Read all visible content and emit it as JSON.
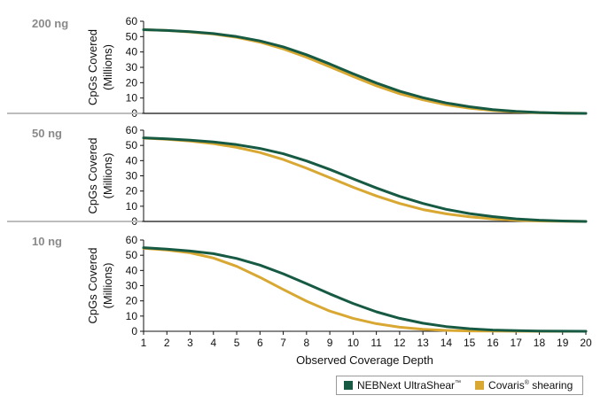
{
  "colors": {
    "neb": "#175a44",
    "covaris": "#d9a832"
  },
  "legend": {
    "neb_label": "NEBNext UltraShear",
    "neb_mark": "™",
    "covaris_label": "Covaris",
    "covaris_mark": "®",
    "covaris_suffix": " shearing"
  },
  "chart_data": [
    {
      "type": "line",
      "title": "200 ng",
      "xlabel": "Observed Coverage Depth",
      "ylabel": [
        "CpGs Covered",
        "(Millions)"
      ],
      "xlim": [
        1,
        20
      ],
      "ylim": [
        0,
        60
      ],
      "yticks": [
        0,
        10,
        20,
        30,
        40,
        50,
        60
      ],
      "x": [
        1,
        2,
        3,
        4,
        5,
        6,
        7,
        8,
        9,
        10,
        11,
        12,
        13,
        14,
        15,
        16,
        17,
        18,
        19,
        20
      ],
      "series": [
        {
          "name": "NEBNext UltraShear",
          "values": [
            54.5,
            54,
            53.2,
            52,
            50,
            47.2,
            43.3,
            38.2,
            32.2,
            25.8,
            19.8,
            14.5,
            10.2,
            6.8,
            4.3,
            2.5,
            1.3,
            0.6,
            0.2,
            0
          ]
        },
        {
          "name": "Covaris shearing",
          "values": [
            54.5,
            54,
            53,
            51.7,
            49.5,
            46.4,
            42,
            36.6,
            30.4,
            24,
            18,
            12.8,
            8.8,
            5.6,
            3.4,
            1.9,
            0.9,
            0.4,
            0.1,
            0
          ]
        }
      ]
    },
    {
      "type": "line",
      "title": "50 ng",
      "xlabel": "Observed Coverage Depth",
      "ylabel": [
        "CpGs Covered",
        "(Millions)"
      ],
      "xlim": [
        1,
        20
      ],
      "ylim": [
        0,
        60
      ],
      "yticks": [
        0,
        10,
        20,
        30,
        40,
        50,
        60
      ],
      "x": [
        1,
        2,
        3,
        4,
        5,
        6,
        7,
        8,
        9,
        10,
        11,
        12,
        13,
        14,
        15,
        16,
        17,
        18,
        19,
        20
      ],
      "series": [
        {
          "name": "NEBNext UltraShear",
          "values": [
            55,
            54.3,
            53.5,
            52.3,
            50.5,
            48,
            44.5,
            39.8,
            34.2,
            28,
            22,
            16.5,
            11.8,
            8,
            5.2,
            3.2,
            1.7,
            0.8,
            0.3,
            0
          ]
        },
        {
          "name": "Covaris shearing",
          "values": [
            54.8,
            54,
            52.9,
            51.2,
            48.7,
            45.3,
            40.7,
            35,
            28.8,
            22.5,
            16.8,
            11.8,
            7.8,
            5,
            3,
            1.7,
            0.8,
            0.3,
            0.1,
            0
          ]
        }
      ]
    },
    {
      "type": "line",
      "title": "10 ng",
      "xlabel": "Observed Coverage Depth",
      "ylabel": [
        "CpGs Covered",
        "(Millions)"
      ],
      "xlim": [
        1,
        20
      ],
      "ylim": [
        0,
        60
      ],
      "yticks": [
        0,
        10,
        20,
        30,
        40,
        50,
        60
      ],
      "xticks": [
        1,
        2,
        3,
        4,
        5,
        6,
        7,
        8,
        9,
        10,
        11,
        12,
        13,
        14,
        15,
        16,
        17,
        18,
        19,
        20
      ],
      "x": [
        1,
        2,
        3,
        4,
        5,
        6,
        7,
        8,
        9,
        10,
        11,
        12,
        13,
        14,
        15,
        16,
        17,
        18,
        19,
        20
      ],
      "series": [
        {
          "name": "NEBNext UltraShear",
          "values": [
            55,
            54,
            52.8,
            51,
            47.9,
            43.5,
            37.8,
            31.3,
            24.6,
            18.3,
            12.8,
            8.5,
            5.3,
            3.1,
            1.7,
            0.8,
            0.4,
            0.15,
            0.05,
            0
          ]
        },
        {
          "name": "Covaris shearing",
          "values": [
            54.6,
            53.5,
            51.6,
            48.2,
            42.7,
            35.5,
            27.5,
            19.8,
            13.3,
            8.5,
            5,
            2.7,
            1.3,
            0.6,
            0.25,
            0.1,
            0.05,
            0,
            0,
            0
          ]
        }
      ]
    }
  ]
}
